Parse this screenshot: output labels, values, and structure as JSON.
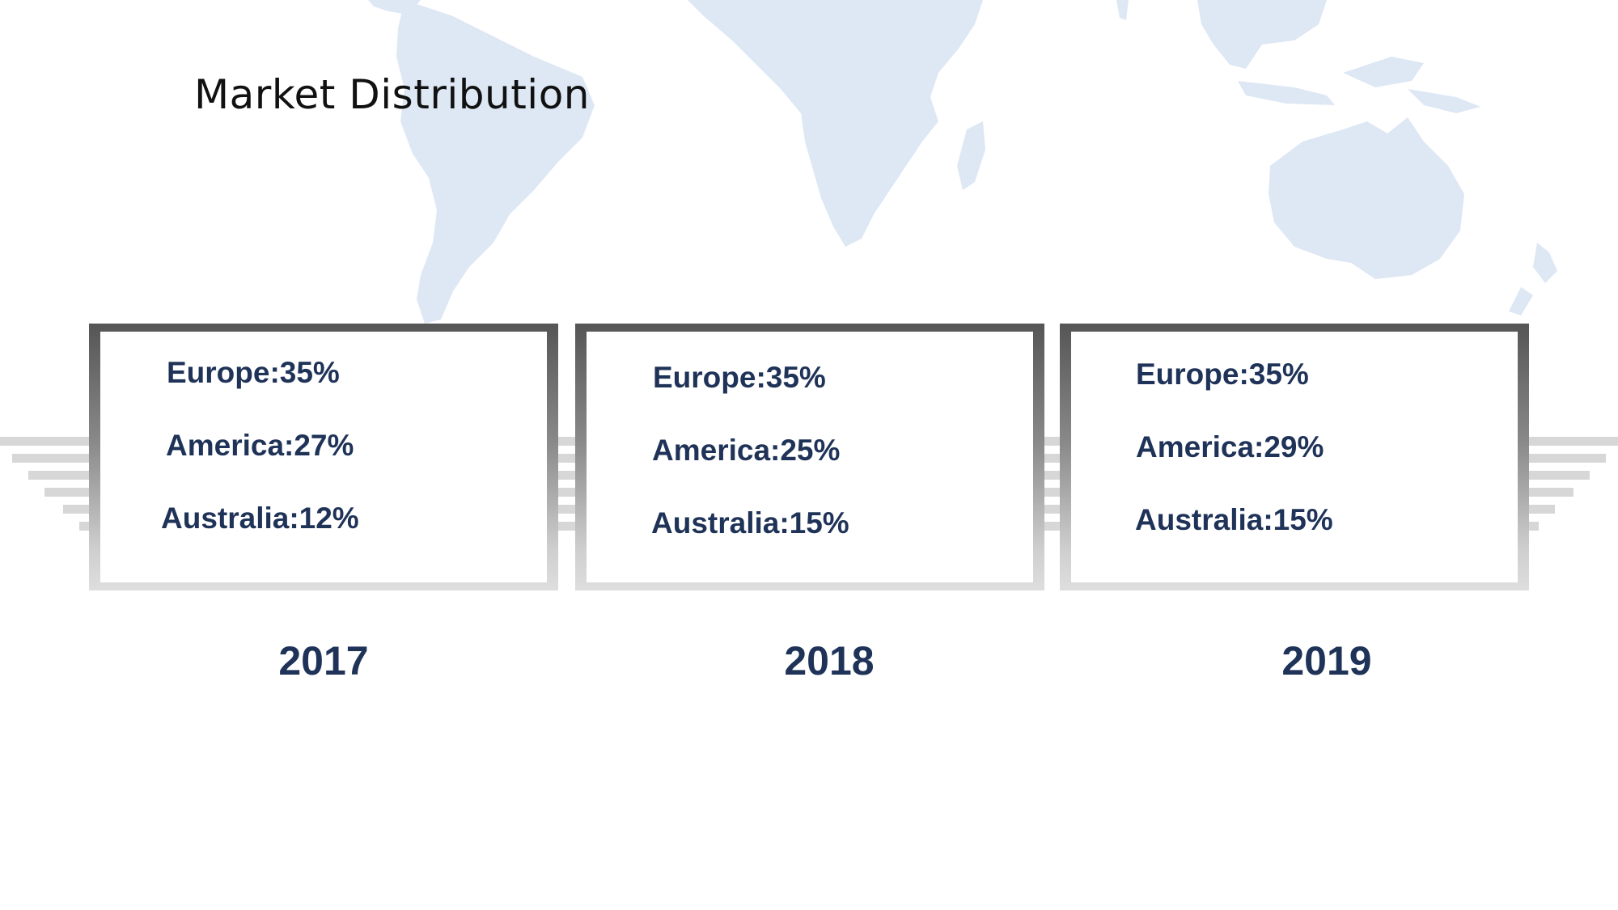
{
  "slide": {
    "title": "Market Distribution"
  },
  "cards": [
    {
      "lines": [
        "Europe:35%",
        "America:27%",
        "Australia:12%"
      ],
      "year": "2017"
    },
    {
      "lines": [
        "Europe:35%",
        "America:25%",
        "Australia:15%"
      ],
      "year": "2018"
    },
    {
      "lines": [
        "Europe:35%",
        "America:29%",
        "Australia:15%"
      ],
      "year": "2019"
    }
  ],
  "colors": {
    "text_dark_blue": "#1f3358",
    "map_light_blue": "#dde8f4",
    "frame_dark": "#555555",
    "frame_light": "#dedede"
  }
}
